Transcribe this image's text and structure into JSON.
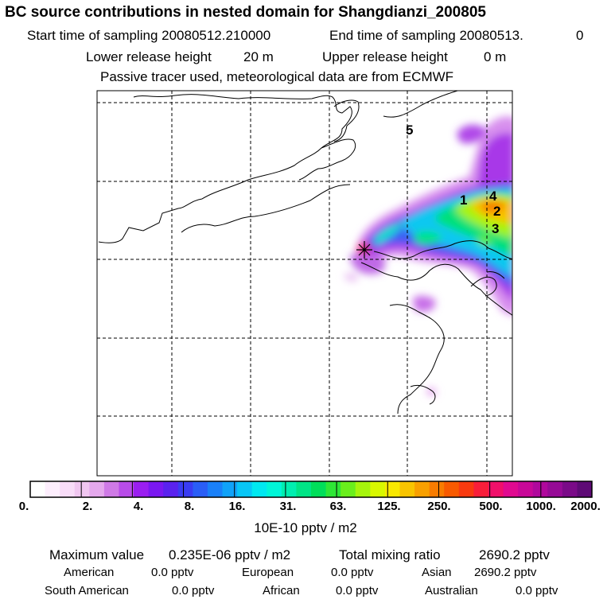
{
  "header": {
    "title": "BC  source contributions in nested domain for Shangdianzi_200805",
    "start_label": "Start time of sampling 20080512.210000",
    "end_label": "End time of sampling 20080513.",
    "end_value": "0",
    "lower_label": "Lower release height",
    "lower_value": "20 m",
    "upper_label": "Upper release height",
    "upper_value": "0 m",
    "tracer_note": "Passive tracer used, meteorological data are from ECMWF"
  },
  "map": {
    "markers": [
      "1",
      "2",
      "3",
      "4",
      "5"
    ]
  },
  "colorbar": {
    "ticks": [
      "0.",
      "2.",
      "4.",
      "8.",
      "16.",
      "31.",
      "63.",
      "125.",
      "250.",
      "500.",
      "1000.",
      "2000."
    ],
    "unit": "10E-10 pptv / m2",
    "colors": [
      "#ffffff",
      "#fdeefd",
      "#f8dcf8",
      "#f0c6f0",
      "#e4a8ec",
      "#cf7ae6",
      "#b84ce8",
      "#9a1ef0",
      "#7a18f0",
      "#5a22ee",
      "#3a3cf2",
      "#2a5ef6",
      "#1a80f8",
      "#10a2f8",
      "#08c6f6",
      "#00e8f0",
      "#00f6d8",
      "#00eeb0",
      "#00e486",
      "#00de5a",
      "#2ee636",
      "#6aee1c",
      "#a6f40c",
      "#d8f800",
      "#f8e800",
      "#f8c400",
      "#f8a000",
      "#f87c00",
      "#f85a00",
      "#f83a10",
      "#f81e3a",
      "#f0106a",
      "#e00a90",
      "#c80898",
      "#b0089c",
      "#960a96",
      "#7a0a88",
      "#5e0a76"
    ]
  },
  "stats": {
    "max_label": "Maximum value",
    "max_value": "0.235E-06 pptv / m2",
    "total_label": "Total mixing ratio",
    "total_value": "2690.2 pptv",
    "regions": [
      {
        "name": "American",
        "value": "0.0 pptv"
      },
      {
        "name": "European",
        "value": "0.0 pptv"
      },
      {
        "name": "Asian",
        "value": "2690.2 pptv"
      },
      {
        "name": "South American",
        "value": "0.0 pptv"
      },
      {
        "name": "African",
        "value": "0.0 pptv"
      },
      {
        "name": "Australian",
        "value": "0.0 pptv"
      }
    ]
  }
}
